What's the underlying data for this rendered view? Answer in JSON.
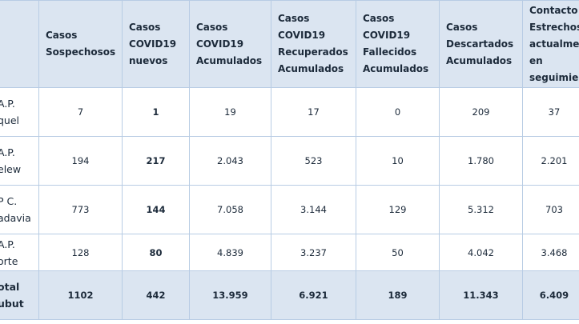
{
  "table": {
    "header": [
      [],
      [
        "Casos",
        "Sospechosos"
      ],
      [
        "Casos",
        "COVID19",
        "nuevos"
      ],
      [
        "Casos",
        "COVID19",
        "Acumulados"
      ],
      [
        "Casos",
        "COVID19",
        "Recuperados",
        "Acumulados"
      ],
      [
        "Casos",
        "COVID19",
        "Fallecidos",
        "Acumulados"
      ],
      [
        "Casos",
        "Descartados",
        "Acumulados"
      ],
      [
        "Contacto",
        "Estrechos",
        "actualme",
        "en",
        "seguimien"
      ]
    ],
    "rows": [
      [
        [
          "A.P.",
          "quel"
        ],
        "7",
        "1",
        "19",
        "17",
        "0",
        "209",
        "37"
      ],
      [
        [
          "A.P.",
          "elew"
        ],
        "194",
        "217",
        "2.043",
        "523",
        "10",
        "1.780",
        "2.201"
      ],
      [
        [
          "P C.",
          "adavia"
        ],
        "773",
        "144",
        "7.058",
        "3.144",
        "129",
        "5.312",
        "703"
      ],
      [
        [
          "A.P.",
          "orte"
        ],
        "128",
        "80",
        "4.839",
        "3.237",
        "50",
        "4.042",
        "3.468"
      ],
      [
        [
          "otal",
          "ubut"
        ],
        "1102",
        "442",
        "13.959",
        "6.921",
        "189",
        "11.343",
        "6.409"
      ]
    ]
  }
}
